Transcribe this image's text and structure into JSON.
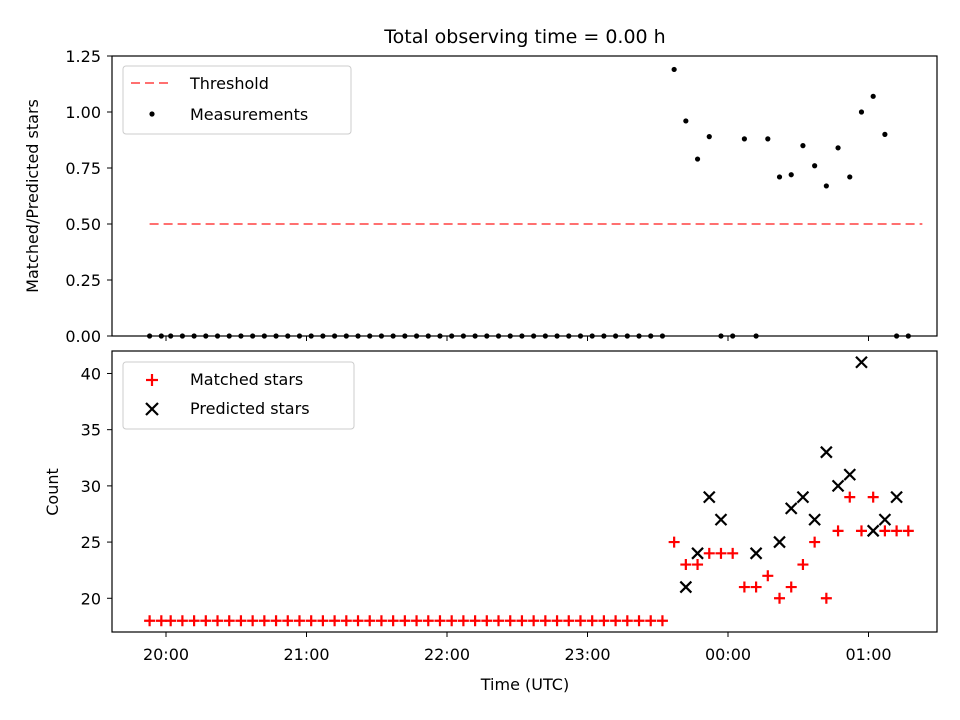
{
  "chart_data": [
    {
      "type": "scatter",
      "title": "Total observing time = 0.00 h",
      "ylabel": "Matched/Predicted stars",
      "ylim": [
        0,
        1.25
      ],
      "yticks": [
        "0.00",
        "0.25",
        "0.50",
        "0.75",
        "1.00",
        "1.25"
      ],
      "threshold": 0.5,
      "legend_position": "upper-left",
      "series": [
        {
          "name": "Threshold",
          "style": "dashed-line",
          "color": "#ff7070",
          "x": [
            "19:53",
            "01:23"
          ],
          "y": [
            0.5,
            0.5
          ]
        },
        {
          "name": "Measurements",
          "style": "dot",
          "color": "#000000",
          "x": [
            "19:53",
            "19:58",
            "20:02",
            "20:07",
            "20:12",
            "20:17",
            "20:22",
            "20:27",
            "20:32",
            "20:37",
            "20:42",
            "20:47",
            "20:52",
            "20:57",
            "21:02",
            "21:07",
            "21:12",
            "21:17",
            "21:22",
            "21:27",
            "21:32",
            "21:37",
            "21:42",
            "21:47",
            "21:52",
            "21:57",
            "22:02",
            "22:07",
            "22:12",
            "22:17",
            "22:22",
            "22:27",
            "22:32",
            "22:37",
            "22:42",
            "22:47",
            "22:52",
            "22:57",
            "23:02",
            "23:07",
            "23:12",
            "23:17",
            "23:22",
            "23:27",
            "23:32",
            "23:37",
            "23:42",
            "23:47",
            "23:52",
            "23:57",
            "00:02",
            "00:07",
            "00:12",
            "00:17",
            "00:22",
            "00:27",
            "00:32",
            "00:37",
            "00:42",
            "00:47",
            "00:52",
            "00:57",
            "01:02",
            "01:07",
            "01:12",
            "01:17"
          ],
          "y": [
            0,
            0,
            0,
            0,
            0,
            0,
            0,
            0,
            0,
            0,
            0,
            0,
            0,
            0,
            0,
            0,
            0,
            0,
            0,
            0,
            0,
            0,
            0,
            0,
            0,
            0,
            0,
            0,
            0,
            0,
            0,
            0,
            0,
            0,
            0,
            0,
            0,
            0,
            0,
            0,
            0,
            0,
            0,
            0,
            0,
            1.19,
            0.96,
            0.79,
            0.89,
            0,
            0,
            0.88,
            0,
            0.88,
            0.71,
            0.72,
            0.85,
            0.76,
            0.67,
            0.84,
            0.71,
            1.0,
            1.07,
            0.9,
            0,
            0
          ]
        }
      ]
    },
    {
      "type": "scatter",
      "xlabel": "Time (UTC)",
      "ylabel": "Count",
      "ylim": [
        17,
        42
      ],
      "yticks": [
        "20",
        "25",
        "30",
        "35",
        "40"
      ],
      "xticks": [
        "20:00",
        "21:00",
        "22:00",
        "23:00",
        "00:00",
        "01:00"
      ],
      "legend_position": "upper-left",
      "series": [
        {
          "name": "Matched stars",
          "style": "plus",
          "color": "#ff0000",
          "x": [
            "19:53",
            "19:58",
            "20:02",
            "20:07",
            "20:12",
            "20:17",
            "20:22",
            "20:27",
            "20:32",
            "20:37",
            "20:42",
            "20:47",
            "20:52",
            "20:57",
            "21:02",
            "21:07",
            "21:12",
            "21:17",
            "21:22",
            "21:27",
            "21:32",
            "21:37",
            "21:42",
            "21:47",
            "21:52",
            "21:57",
            "22:02",
            "22:07",
            "22:12",
            "22:17",
            "22:22",
            "22:27",
            "22:32",
            "22:37",
            "22:42",
            "22:47",
            "22:52",
            "22:57",
            "23:02",
            "23:07",
            "23:12",
            "23:17",
            "23:22",
            "23:27",
            "23:32",
            "23:37",
            "23:42",
            "23:47",
            "23:52",
            "23:57",
            "00:02",
            "00:07",
            "00:12",
            "00:17",
            "00:22",
            "00:27",
            "00:32",
            "00:37",
            "00:42",
            "00:47",
            "00:52",
            "00:57",
            "01:02",
            "01:07",
            "01:12",
            "01:17"
          ],
          "y": [
            18,
            18,
            18,
            18,
            18,
            18,
            18,
            18,
            18,
            18,
            18,
            18,
            18,
            18,
            18,
            18,
            18,
            18,
            18,
            18,
            18,
            18,
            18,
            18,
            18,
            18,
            18,
            18,
            18,
            18,
            18,
            18,
            18,
            18,
            18,
            18,
            18,
            18,
            18,
            18,
            18,
            18,
            18,
            18,
            18,
            25,
            23,
            23,
            24,
            24,
            24,
            21,
            21,
            22,
            20,
            21,
            23,
            25,
            20,
            26,
            29,
            26,
            29,
            26,
            26,
            26
          ]
        },
        {
          "name": "Predicted stars",
          "style": "x",
          "color": "#000000",
          "x": [
            "23:42",
            "23:47",
            "23:52",
            "23:57",
            "00:12",
            "00:22",
            "00:27",
            "00:32",
            "00:37",
            "00:42",
            "00:47",
            "00:52",
            "00:57",
            "01:02",
            "01:07",
            "01:12"
          ],
          "y": [
            21,
            24,
            29,
            27,
            24,
            25,
            28,
            29,
            27,
            33,
            30,
            31,
            41,
            26,
            27,
            29
          ]
        }
      ]
    }
  ]
}
